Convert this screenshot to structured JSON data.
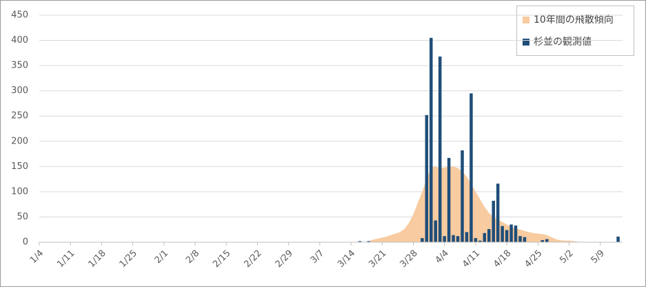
{
  "chart_data": {
    "type": "bar_area",
    "categories": [
      "1/4",
      null,
      null,
      null,
      null,
      null,
      null,
      "1/11",
      null,
      null,
      null,
      null,
      null,
      null,
      "1/18",
      null,
      null,
      null,
      null,
      null,
      null,
      "1/25",
      null,
      null,
      null,
      null,
      null,
      null,
      "2/1",
      null,
      null,
      null,
      null,
      null,
      null,
      "2/8",
      null,
      null,
      null,
      null,
      null,
      null,
      "2/15",
      null,
      null,
      null,
      null,
      null,
      null,
      "2/22",
      null,
      null,
      null,
      null,
      null,
      null,
      "2/29",
      null,
      null,
      null,
      null,
      null,
      null,
      "3/7",
      null,
      null,
      null,
      null,
      null,
      null,
      "3/14",
      null,
      null,
      null,
      null,
      null,
      null,
      "3/21",
      null,
      null,
      null,
      null,
      null,
      null,
      "3/28",
      null,
      null,
      null,
      null,
      null,
      null,
      "4/4",
      null,
      null,
      null,
      null,
      null,
      null,
      "4/11",
      null,
      null,
      null,
      null,
      null,
      null,
      "4/18",
      null,
      null,
      null,
      null,
      null,
      null,
      "4/25",
      null,
      null,
      null,
      null,
      null,
      null,
      "5/2",
      null,
      null,
      null,
      null,
      null,
      null,
      "5/9",
      null,
      null,
      null,
      null,
      null
    ],
    "series": [
      {
        "name": "10年間の飛散傾向",
        "kind": "area",
        "color": "#f8cba0",
        "values": [
          0,
          0,
          0,
          0,
          0,
          0,
          0,
          0,
          0,
          0,
          0,
          0,
          0,
          0,
          0,
          0,
          0,
          0,
          0,
          0,
          0,
          0,
          0,
          0,
          0,
          0,
          0,
          0,
          0,
          0,
          0,
          0,
          0,
          0,
          0,
          0,
          0,
          0,
          0,
          0,
          0,
          0,
          0,
          0,
          0,
          0,
          0,
          0,
          0,
          0,
          0,
          0,
          0,
          0,
          0,
          0,
          0,
          0,
          0,
          0,
          0,
          0,
          0,
          0,
          0,
          0,
          0,
          0,
          0,
          0,
          0,
          0,
          0,
          0,
          2,
          5,
          7,
          9,
          11,
          14,
          17,
          20,
          26,
          38,
          55,
          78,
          100,
          125,
          148,
          150,
          146,
          148,
          150,
          150,
          147,
          140,
          130,
          116,
          100,
          85,
          70,
          58,
          50,
          45,
          40,
          35,
          30,
          27,
          25,
          22,
          20,
          18,
          17,
          16,
          14,
          10,
          6,
          4,
          3,
          3,
          2,
          1,
          0,
          0,
          0,
          0,
          0,
          0,
          0,
          0,
          0,
          0
        ]
      },
      {
        "name": "杉並の観測値",
        "kind": "bar",
        "color": "#1f4e79",
        "values": [
          0,
          0,
          0,
          0,
          0,
          0,
          0,
          0,
          0,
          0,
          0,
          0,
          0,
          0,
          0,
          0,
          0,
          0,
          0,
          0,
          0,
          0,
          0,
          0,
          0,
          0,
          0,
          0,
          0,
          0,
          0,
          0,
          0,
          0,
          0,
          0,
          0,
          0,
          0,
          0,
          0,
          0,
          0,
          0,
          0,
          0,
          0,
          0,
          0,
          0,
          0,
          0,
          0,
          0,
          0,
          0,
          0,
          0,
          0,
          0,
          0,
          0,
          0,
          0,
          0,
          0,
          0,
          0,
          0,
          0,
          0,
          0,
          2,
          0,
          2,
          0,
          0,
          0,
          0,
          0,
          0,
          0,
          0,
          0,
          0,
          0,
          8,
          252,
          405,
          43,
          368,
          12,
          167,
          14,
          12,
          182,
          20,
          295,
          8,
          3,
          18,
          26,
          82,
          116,
          32,
          24,
          35,
          33,
          12,
          10,
          0,
          0,
          0,
          4,
          6,
          0,
          0,
          0,
          0,
          0,
          0,
          0,
          0,
          0,
          0,
          0,
          0,
          0,
          0,
          0,
          11,
          0
        ]
      }
    ],
    "ylim": [
      0,
      450
    ],
    "yticks": [
      0,
      50,
      100,
      150,
      200,
      250,
      300,
      350,
      400,
      450
    ],
    "grid": true,
    "legend": "top-right"
  }
}
